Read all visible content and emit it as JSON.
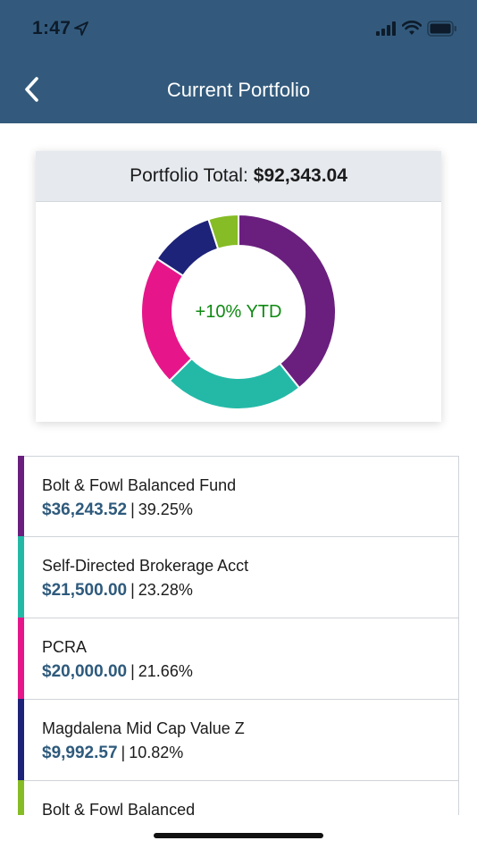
{
  "status_bar": {
    "time": "1:47",
    "icons": [
      "location-arrow-icon",
      "cellular-signal-icon",
      "wifi-icon",
      "battery-icon"
    ]
  },
  "nav": {
    "back_icon": "chevron-left-icon",
    "title": "Current Portfolio",
    "bar_color": "#335a7c"
  },
  "portfolio": {
    "total_label": "Portfolio Total:",
    "total_value": "$92,343.04",
    "ytd_label": "+10% YTD",
    "ytd_color": "#0f8a12"
  },
  "chart_data": {
    "type": "pie",
    "title": "",
    "center_label": "+10% YTD",
    "slices": [
      {
        "label": "Bolt & Fowl Balanced Fund",
        "value": 39.25,
        "color": "#6a1f7e"
      },
      {
        "label": "Self-Directed Brokerage Acct",
        "value": 23.28,
        "color": "#24b9a7"
      },
      {
        "label": "PCRA",
        "value": 21.66,
        "color": "#e6168a"
      },
      {
        "label": "Magdalena Mid Cap Value Z",
        "value": 10.82,
        "color": "#1d2378"
      },
      {
        "label": "Bolt & Fowl Balanced",
        "value": 4.99,
        "color": "#86bc25"
      }
    ]
  },
  "accounts": [
    {
      "name": "Bolt & Fowl Balanced Fund",
      "amount": "$36,243.52",
      "percent": "39.25%",
      "color": "#6a1f7e"
    },
    {
      "name": "Self-Directed Brokerage Acct",
      "amount": "$21,500.00",
      "percent": "23.28%",
      "color": "#24b9a7"
    },
    {
      "name": "PCRA",
      "amount": "$20,000.00",
      "percent": "21.66%",
      "color": "#e6168a"
    },
    {
      "name": "Magdalena Mid Cap Value Z",
      "amount": "$9,992.57",
      "percent": "10.82%",
      "color": "#1d2378"
    },
    {
      "name": "Bolt & Fowl Balanced",
      "amount": "",
      "percent": "",
      "color": "#86bc25"
    }
  ],
  "separator": "|"
}
